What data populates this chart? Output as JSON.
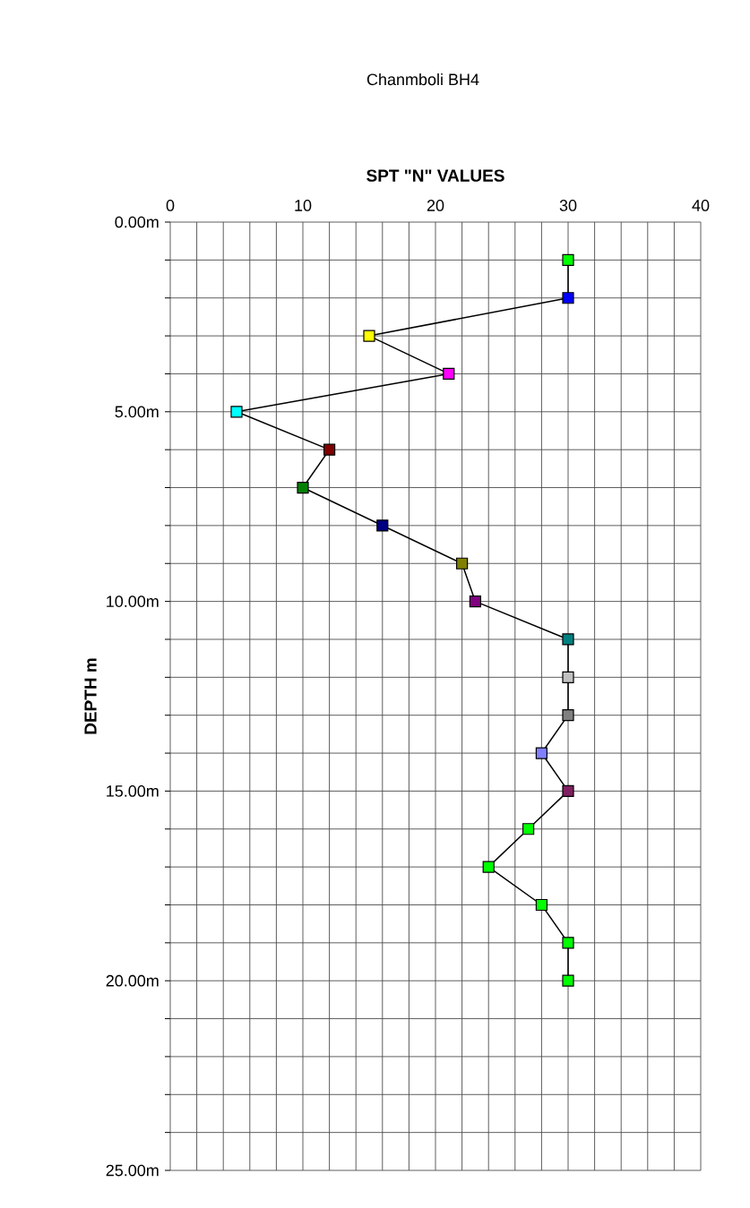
{
  "chart_data": {
    "type": "line",
    "title": "Chanmboli BH4",
    "xlabel": "SPT \"N\" VALUES",
    "ylabel": "DEPTH m",
    "xlim": [
      0,
      40
    ],
    "ylim": [
      25,
      0
    ],
    "xticks": [
      0,
      {
        "value": 2,
        "label": null
      },
      {
        "value": 4,
        "label": null
      },
      {
        "value": 6,
        "label": null
      },
      {
        "value": 8,
        "label": null
      },
      10,
      {
        "value": 12,
        "label": null
      },
      {
        "value": 14,
        "label": null
      },
      {
        "value": 16,
        "label": null
      },
      {
        "value": 18,
        "label": null
      },
      20,
      {
        "value": 22,
        "label": null
      },
      {
        "value": 24,
        "label": null
      },
      {
        "value": 26,
        "label": null
      },
      {
        "value": 28,
        "label": null
      },
      30,
      {
        "value": 32,
        "label": null
      },
      {
        "value": 34,
        "label": null
      },
      {
        "value": 36,
        "label": null
      },
      {
        "value": 38,
        "label": null
      },
      40
    ],
    "yticks": [
      {
        "value": 0,
        "label": "0.00m"
      },
      {
        "value": 1,
        "label": null
      },
      {
        "value": 2,
        "label": null
      },
      {
        "value": 3,
        "label": null
      },
      {
        "value": 4,
        "label": null
      },
      {
        "value": 5,
        "label": "5.00m"
      },
      {
        "value": 6,
        "label": null
      },
      {
        "value": 7,
        "label": null
      },
      {
        "value": 8,
        "label": null
      },
      {
        "value": 9,
        "label": null
      },
      {
        "value": 10,
        "label": "10.00m"
      },
      {
        "value": 11,
        "label": null
      },
      {
        "value": 12,
        "label": null
      },
      {
        "value": 13,
        "label": null
      },
      {
        "value": 14,
        "label": null
      },
      {
        "value": 15,
        "label": "15.00m"
      },
      {
        "value": 16,
        "label": null
      },
      {
        "value": 17,
        "label": null
      },
      {
        "value": 18,
        "label": null
      },
      {
        "value": 19,
        "label": null
      },
      {
        "value": 20,
        "label": "20.00m"
      },
      {
        "value": 21,
        "label": null
      },
      {
        "value": 22,
        "label": null
      },
      {
        "value": 23,
        "label": null
      },
      {
        "value": 24,
        "label": null
      },
      {
        "value": 25,
        "label": "25.00m"
      }
    ],
    "grid": true,
    "orientation": "horizontal",
    "marker": "square",
    "line_style": "solid",
    "series": [
      {
        "color": "#000000",
        "x": [
          1,
          2,
          3,
          4,
          5,
          6,
          7,
          8,
          9,
          10,
          11,
          12,
          13,
          14,
          15,
          16,
          17,
          18,
          19,
          20
        ],
        "values": [
          30,
          30,
          15,
          21,
          5,
          12,
          10,
          16,
          22,
          23,
          30,
          30,
          30,
          28,
          30,
          27,
          24,
          28,
          30,
          30
        ],
        "colors": [
          "#00ff00",
          "#0000ff",
          "#ffff00",
          "#ff00ff",
          "#00ffff",
          "#800000",
          "#008000",
          "#000080",
          "#808000",
          "#800080",
          "#008080",
          "#c0c0c0",
          "#808080",
          "#8080ff",
          "#802060",
          "#00ff00",
          "#00ff00",
          "#00ff00",
          "#00ff00",
          "#00ff00"
        ]
      }
    ]
  }
}
